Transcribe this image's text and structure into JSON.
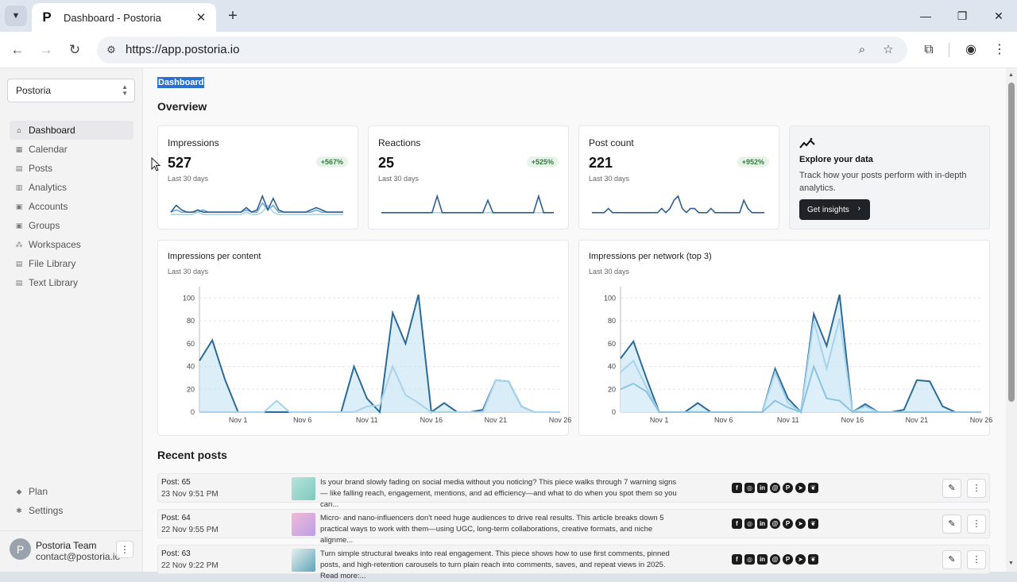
{
  "browser": {
    "tab_title": "Dashboard - Postoria",
    "favicon_letter": "P",
    "url": "https://app.postoria.io"
  },
  "sidebar": {
    "org_name": "Postoria",
    "items": [
      {
        "label": "Dashboard",
        "icon": "home-icon"
      },
      {
        "label": "Calendar",
        "icon": "calendar-icon"
      },
      {
        "label": "Posts",
        "icon": "posts-icon"
      },
      {
        "label": "Analytics",
        "icon": "analytics-icon"
      },
      {
        "label": "Accounts",
        "icon": "accounts-icon"
      },
      {
        "label": "Groups",
        "icon": "groups-icon"
      },
      {
        "label": "Workspaces",
        "icon": "workspaces-icon"
      },
      {
        "label": "File Library",
        "icon": "file-library-icon"
      },
      {
        "label": "Text Library",
        "icon": "text-library-icon"
      }
    ],
    "bottom_items": [
      {
        "label": "Plan",
        "icon": "tag-icon"
      },
      {
        "label": "Settings",
        "icon": "gear-icon"
      }
    ],
    "user": {
      "initial": "P",
      "name": "Postoria Team",
      "email": "contact@postoria.io"
    }
  },
  "main": {
    "page_title": "Dashboard",
    "overview_title": "Overview",
    "stats": [
      {
        "label": "Impressions",
        "value": "527",
        "badge": "+567%",
        "sub": "Last 30 days"
      },
      {
        "label": "Reactions",
        "value": "25",
        "badge": "+525%",
        "sub": "Last 30 days"
      },
      {
        "label": "Post count",
        "value": "221",
        "badge": "+952%",
        "sub": "Last 30 days"
      }
    ],
    "explore": {
      "title": "Explore your data",
      "text": "Track how your posts perform with in-depth analytics.",
      "button": "Get insights"
    },
    "charts": [
      {
        "title": "Impressions per content",
        "sub": "Last 30 days"
      },
      {
        "title": "Impressions per network (top 3)",
        "sub": "Last 30 days"
      }
    ],
    "recent_title": "Recent posts",
    "posts": [
      {
        "id": "Post: 65",
        "date": "23 Nov 9:51 PM",
        "text": "Is your brand slowly fading on social media without you noticing? This piece walks through 7 warning signs— like falling reach, engagement, mentions, and ad efficiency—and what to do when you spot them so you can..."
      },
      {
        "id": "Post: 64",
        "date": "22 Nov 9:55 PM",
        "text": "Micro- and nano-influencers don't need huge audiences to drive real results. This article breaks down 5 practical ways to work with them—using UGC, long-term collaborations, creative formats, and niche alignme..."
      },
      {
        "id": "Post: 63",
        "date": "22 Nov 9:22 PM",
        "text": "Turn simple structural tweaks into real engagement. This piece shows how to use first comments, pinned posts, and high-retention carousels to turn plain reach into comments, saves, and repeat views in 2025. Read more:..."
      }
    ],
    "networks": [
      "facebook-icon",
      "instagram-icon",
      "linkedin-icon",
      "threads-icon",
      "pinterest-icon",
      "telegram-icon",
      "bluesky-icon"
    ]
  },
  "colors": {
    "accent": "#2b6fcf",
    "line_dark": "#2f5f8f",
    "line_light": "#a9d3ea",
    "fill": "#bfe0f3",
    "badge_green": "#2f7d3b"
  },
  "chart_data": [
    {
      "type": "line",
      "title": "",
      "series": [
        {
          "values": [
            2,
            5,
            3,
            2,
            2,
            3,
            2,
            2,
            2,
            2,
            2,
            2,
            2,
            2,
            4,
            2,
            3,
            9,
            3,
            8,
            3,
            2,
            2,
            2,
            2,
            2,
            3,
            4,
            3,
            2,
            2,
            2,
            2
          ]
        },
        {
          "values": [
            1,
            1,
            1,
            1,
            1,
            2,
            1,
            1,
            1,
            1,
            1,
            1,
            1,
            1,
            2,
            1,
            1,
            2,
            5,
            2,
            1,
            1,
            1,
            1,
            1,
            1,
            1,
            1,
            1,
            1,
            1,
            1,
            1
          ]
        },
        {
          "values": [
            2,
            3,
            2,
            2,
            2,
            2,
            3,
            2,
            2,
            2,
            2,
            2,
            2,
            2,
            3,
            2,
            2,
            6,
            3,
            5,
            2,
            2,
            2,
            2,
            2,
            2,
            2,
            3,
            2,
            2,
            2,
            2,
            2
          ]
        }
      ]
    },
    {
      "type": "line",
      "title": "",
      "series": [
        {
          "values": [
            1,
            1,
            1,
            1,
            1,
            1,
            1,
            1,
            1,
            1,
            1,
            5,
            1,
            1,
            1,
            1,
            1,
            1,
            1,
            1,
            1,
            4,
            1,
            1,
            1,
            1,
            1,
            1,
            1,
            1,
            1,
            5,
            1,
            1,
            1
          ]
        },
        {
          "values": [
            1,
            1,
            1,
            1,
            1,
            1,
            1,
            1,
            1,
            1,
            1,
            1,
            1,
            1,
            1,
            1,
            1,
            1,
            1,
            1,
            1,
            1,
            1,
            1,
            1,
            1,
            1,
            1,
            1,
            1,
            1,
            1,
            1,
            1,
            1
          ]
        }
      ]
    },
    {
      "type": "line",
      "title": "",
      "series": [
        {
          "values": [
            1,
            1,
            1,
            1,
            2,
            1,
            1,
            1,
            1,
            1,
            1,
            1,
            1,
            1,
            1,
            1,
            1,
            2,
            1,
            2,
            4,
            5,
            2,
            1,
            2,
            2,
            1,
            1,
            1,
            2,
            1,
            1,
            1,
            1,
            1,
            1,
            1,
            4,
            2,
            1,
            1,
            1,
            1
          ]
        }
      ]
    },
    {
      "type": "area",
      "title": "Impressions per content",
      "x": [
        "Oct 29",
        "Oct 30",
        "Oct 31",
        "Nov 1",
        "Nov 2",
        "Nov 3",
        "Nov 4",
        "Nov 5",
        "Nov 6",
        "Nov 7",
        "Nov 8",
        "Nov 9",
        "Nov 10",
        "Nov 11",
        "Nov 12",
        "Nov 13",
        "Nov 14",
        "Nov 15",
        "Nov 16",
        "Nov 17",
        "Nov 18",
        "Nov 19",
        "Nov 20",
        "Nov 21",
        "Nov 22",
        "Nov 23",
        "Nov 24",
        "Nov 25",
        "Nov 26"
      ],
      "x_ticks": [
        "Nov 1",
        "Nov 6",
        "Nov 11",
        "Nov 16",
        "Nov 21",
        "Nov 26"
      ],
      "y_ticks": [
        0,
        20,
        40,
        60,
        80,
        100
      ],
      "ylim": [
        0,
        110
      ],
      "series": [
        {
          "values": [
            45,
            63,
            28,
            0,
            0,
            0,
            0,
            0,
            0,
            0,
            0,
            0,
            40,
            12,
            0,
            87,
            60,
            103,
            0,
            8,
            0,
            0,
            2,
            28,
            27,
            5,
            0,
            0,
            0
          ]
        },
        {
          "values": [
            0,
            0,
            0,
            0,
            0,
            0,
            10,
            0,
            0,
            0,
            0,
            0,
            0,
            5,
            6,
            40,
            15,
            8,
            0,
            0,
            0,
            0,
            0,
            28,
            27,
            5,
            0,
            0,
            0
          ]
        }
      ]
    },
    {
      "type": "area",
      "title": "Impressions per network (top 3)",
      "x": [
        "Oct 29",
        "Oct 30",
        "Oct 31",
        "Nov 1",
        "Nov 2",
        "Nov 3",
        "Nov 4",
        "Nov 5",
        "Nov 6",
        "Nov 7",
        "Nov 8",
        "Nov 9",
        "Nov 10",
        "Nov 11",
        "Nov 12",
        "Nov 13",
        "Nov 14",
        "Nov 15",
        "Nov 16",
        "Nov 17",
        "Nov 18",
        "Nov 19",
        "Nov 20",
        "Nov 21",
        "Nov 22",
        "Nov 23",
        "Nov 24",
        "Nov 25",
        "Nov 26"
      ],
      "x_ticks": [
        "Nov 1",
        "Nov 6",
        "Nov 11",
        "Nov 16",
        "Nov 21",
        "Nov 26"
      ],
      "y_ticks": [
        0,
        20,
        40,
        60,
        80,
        100
      ],
      "ylim": [
        0,
        110
      ],
      "series": [
        {
          "values": [
            47,
            62,
            30,
            0,
            0,
            0,
            8,
            0,
            0,
            0,
            0,
            0,
            38,
            12,
            0,
            86,
            58,
            103,
            0,
            7,
            0,
            0,
            2,
            28,
            27,
            5,
            0,
            0,
            0
          ]
        },
        {
          "values": [
            35,
            45,
            22,
            0,
            0,
            0,
            0,
            0,
            0,
            0,
            0,
            0,
            35,
            8,
            0,
            80,
            38,
            82,
            0,
            5,
            0,
            0,
            0,
            0,
            0,
            0,
            0,
            0,
            0
          ]
        },
        {
          "values": [
            20,
            25,
            18,
            0,
            0,
            0,
            0,
            0,
            0,
            0,
            0,
            0,
            10,
            4,
            0,
            40,
            12,
            10,
            0,
            0,
            0,
            0,
            0,
            0,
            0,
            0,
            0,
            0,
            0
          ]
        }
      ]
    }
  ]
}
